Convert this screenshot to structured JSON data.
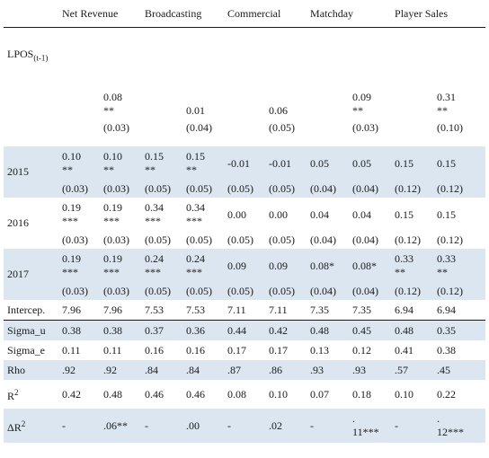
{
  "header": {
    "blank": "",
    "groups": [
      "Net Revenue",
      "Broadcasting",
      "Commercial",
      "Matchday",
      "Player Sales"
    ]
  },
  "rows": {
    "lpos": {
      "label_main": "LPOS",
      "label_sub": "(t-1)",
      "coefs": [
        "",
        "0.08\n**",
        "",
        "0.01",
        "",
        "0.06",
        "",
        "0.09\n**",
        "",
        "0.31\n**"
      ],
      "ses": [
        "",
        "(0.03)",
        "",
        "(0.04)",
        "",
        "(0.05)",
        "",
        "(0.03)",
        "",
        "(0.10)"
      ]
    },
    "y2015": {
      "label": "2015",
      "coefs": [
        "0.10\n**",
        "0.10\n**",
        "0.15\n**",
        "0.15\n**",
        "-0.01",
        "-0.01",
        "0.05",
        "0.05",
        "0.15",
        "0.15"
      ],
      "ses": [
        "(0.03)",
        "(0.03)",
        "(0.05)",
        "(0.05)",
        "(0.05)",
        "(0.05)",
        "(0.04)",
        "(0.04)",
        "(0.12)",
        "(0.12)"
      ]
    },
    "y2016": {
      "label": "2016",
      "coefs": [
        "0.19\n***",
        "0.19\n***",
        "0.34\n***",
        "0.34\n***",
        "0.00",
        "0.00",
        "0.04",
        "0.04",
        "0.15",
        "0.15"
      ],
      "ses": [
        "(0.03)",
        "(0.03)",
        "(0.05)",
        "(0.05)",
        "(0.05)",
        "(0.05)",
        "(0.04)",
        "(0.04)",
        "(0.12)",
        "(0.12)"
      ]
    },
    "y2017": {
      "label": "2017",
      "coefs": [
        "0.19\n***",
        "0.19\n***",
        "0.24\n***",
        "0.24\n***",
        "0.09",
        "0.09",
        "0.08*",
        "0.08*",
        "0.33\n**",
        "0.33\n**"
      ],
      "ses": [
        "(0.03)",
        "(0.03)",
        "(0.05)",
        "(0.05)",
        "(0.05)",
        "(0.05)",
        "(0.04)",
        "(0.04)",
        "(0.12)",
        "(0.12)"
      ]
    },
    "intercep": {
      "label": "Intercep.",
      "values": [
        "7.96",
        "7.96",
        "7.53",
        "7.53",
        "7.11",
        "7.11",
        "7.35",
        "7.35",
        "6.94",
        "6.94"
      ]
    },
    "sigma_u": {
      "label": "Sigma_u",
      "values": [
        "0.38",
        "0.38",
        "0.37",
        "0.36",
        "0.44",
        "0.42",
        "0.48",
        "0.45",
        "0.48",
        "0.35"
      ]
    },
    "sigma_e": {
      "label": "Sigma_e",
      "values": [
        "0.11",
        "0.11",
        "0.16",
        "0.16",
        "0.17",
        "0.17",
        "0.13",
        "0.12",
        "0.41",
        "0.38"
      ]
    },
    "rho": {
      "label": "Rho",
      "values": [
        ".92",
        ".92",
        ".84",
        ".84",
        ".87",
        ".86",
        ".93",
        ".93",
        ".57",
        ".45"
      ]
    },
    "r2": {
      "label_main": "R",
      "label_sup": "2",
      "values": [
        "0.42",
        "0.48",
        "0.46",
        "0.46",
        "0.08",
        "0.10",
        "0.07",
        "0.18",
        "0.10",
        "0.22"
      ]
    },
    "dr2": {
      "label_main": "ΔR",
      "label_sup": "2",
      "values": [
        "-",
        ".06**",
        "-",
        ".00",
        "-",
        ".02",
        "-",
        ".\n11***",
        "-",
        ".\n12***"
      ]
    }
  }
}
